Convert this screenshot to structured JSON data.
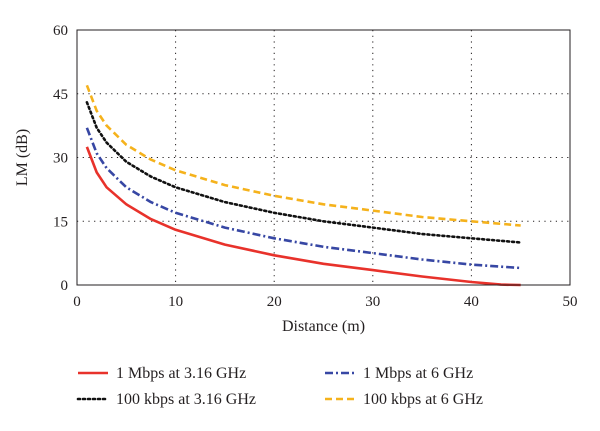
{
  "chart_data": {
    "type": "line",
    "xlabel": "Distance (m)",
    "ylabel": "LM (dB)",
    "xlim": [
      0,
      50
    ],
    "ylim": [
      0,
      60
    ],
    "xticks": [
      0,
      10,
      20,
      30,
      40,
      50
    ],
    "yticks": [
      0,
      15,
      30,
      45,
      60
    ],
    "grid": "dotted",
    "legend_position": "bottom",
    "series": [
      {
        "name": "1 Mbps at 3.16 GHz",
        "color": "#e8322b",
        "dash": "solid",
        "x": [
          1,
          2,
          3,
          5,
          7.5,
          10,
          15,
          20,
          25,
          30,
          35,
          40,
          43,
          45
        ],
        "y": [
          32.5,
          26.5,
          23,
          19,
          15.5,
          13,
          9.5,
          7,
          5,
          3.5,
          2,
          0.7,
          0.1,
          0
        ]
      },
      {
        "name": "1 Mbps at 6 GHz",
        "color": "#3747a4",
        "dash": "dashdot",
        "x": [
          1,
          2,
          3,
          5,
          7.5,
          10,
          15,
          20,
          25,
          30,
          35,
          40,
          45
        ],
        "y": [
          37,
          31,
          27.5,
          23,
          19.5,
          17,
          13.5,
          11,
          9,
          7.5,
          6,
          4.8,
          4
        ]
      },
      {
        "name": "100 kbps at 3.16 GHz",
        "color": "#111111",
        "dash": "dotted",
        "x": [
          1,
          2,
          3,
          5,
          7.5,
          10,
          15,
          20,
          25,
          30,
          35,
          40,
          45
        ],
        "y": [
          43,
          37,
          33.5,
          29,
          25.5,
          23,
          19.5,
          17,
          15,
          13.5,
          12,
          11,
          10
        ]
      },
      {
        "name": "100 kbps at 6 GHz",
        "color": "#f5b21c",
        "dash": "dashed",
        "x": [
          1,
          2,
          3,
          5,
          7.5,
          10,
          15,
          20,
          25,
          30,
          35,
          40,
          45
        ],
        "y": [
          47,
          41,
          37.5,
          33,
          29.5,
          27,
          23.5,
          21,
          19,
          17.5,
          16,
          15,
          14
        ]
      }
    ]
  }
}
